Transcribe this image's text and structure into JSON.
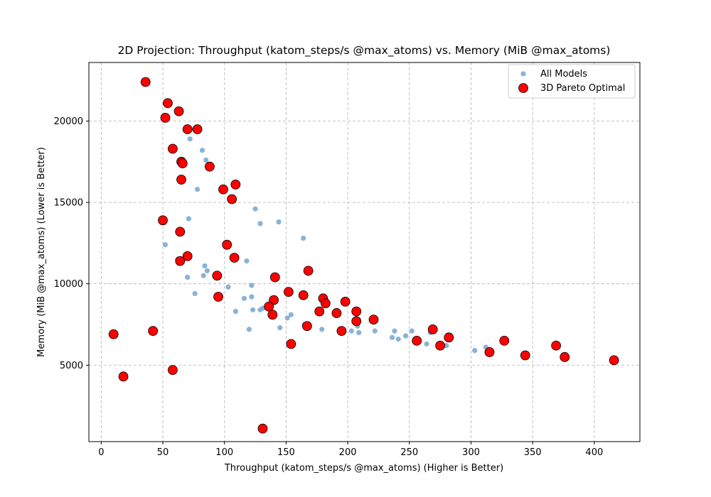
{
  "chart_data": {
    "type": "scatter",
    "title": "2D Projection: Throughput (katom_steps/s @max_atoms) vs. Memory (MiB @max_atoms)",
    "xlabel": "Throughput (katom_steps/s @max_atoms) (Higher is Better)",
    "ylabel": "Memory (MiB @max_atoms) (Lower is Better)",
    "xlim": [
      -10,
      437
    ],
    "ylim": [
      300,
      23600
    ],
    "xticks": [
      0,
      50,
      100,
      150,
      200,
      250,
      300,
      350,
      400
    ],
    "yticks": [
      5000,
      10000,
      15000,
      20000
    ],
    "grid": true,
    "legend_position": "top-right",
    "series": [
      {
        "name": "All Models",
        "color": "#89b3d6",
        "marker": "small-circle",
        "points": [
          [
            36,
            22400
          ],
          [
            54,
            21100
          ],
          [
            52,
            20200
          ],
          [
            63,
            20600
          ],
          [
            70,
            19500
          ],
          [
            72,
            18900
          ],
          [
            78,
            19500
          ],
          [
            82,
            18200
          ],
          [
            85,
            17600
          ],
          [
            58,
            18300
          ],
          [
            65,
            17500
          ],
          [
            66,
            17400
          ],
          [
            88,
            17200
          ],
          [
            65,
            16400
          ],
          [
            78,
            15800
          ],
          [
            99,
            15800
          ],
          [
            109,
            16100
          ],
          [
            106,
            15200
          ],
          [
            125,
            14600
          ],
          [
            129,
            13700
          ],
          [
            144,
            13800
          ],
          [
            164,
            12800
          ],
          [
            71,
            14000
          ],
          [
            50,
            13900
          ],
          [
            64,
            13200
          ],
          [
            52,
            12400
          ],
          [
            102,
            12400
          ],
          [
            62,
            11500
          ],
          [
            70,
            11700
          ],
          [
            64,
            11400
          ],
          [
            108,
            11600
          ],
          [
            118,
            11400
          ],
          [
            84,
            11100
          ],
          [
            86,
            10800
          ],
          [
            83,
            10500
          ],
          [
            70,
            10400
          ],
          [
            94,
            10500
          ],
          [
            141,
            10400
          ],
          [
            168,
            10800
          ],
          [
            76,
            9400
          ],
          [
            95,
            9200
          ],
          [
            103,
            9800
          ],
          [
            122,
            9900
          ],
          [
            116,
            9100
          ],
          [
            122,
            9200
          ],
          [
            109,
            8300
          ],
          [
            123,
            8400
          ],
          [
            129,
            8400
          ],
          [
            131,
            8500
          ],
          [
            136,
            8600
          ],
          [
            139,
            8100
          ],
          [
            140,
            9000
          ],
          [
            152,
            9500
          ],
          [
            151,
            7900
          ],
          [
            154,
            8100
          ],
          [
            165,
            7500
          ],
          [
            164,
            9300
          ],
          [
            177,
            8300
          ],
          [
            180,
            9100
          ],
          [
            182,
            8800
          ],
          [
            191,
            8200
          ],
          [
            198,
            8900
          ],
          [
            207,
            8300
          ],
          [
            207,
            7700
          ],
          [
            208,
            7400
          ],
          [
            221,
            7800
          ],
          [
            120,
            7200
          ],
          [
            145,
            7300
          ],
          [
            167,
            7400
          ],
          [
            179,
            7200
          ],
          [
            195,
            7100
          ],
          [
            203,
            7100
          ],
          [
            209,
            7000
          ],
          [
            222,
            7100
          ],
          [
            236,
            6700
          ],
          [
            238,
            7100
          ],
          [
            241,
            6600
          ],
          [
            247,
            6800
          ],
          [
            252,
            7100
          ],
          [
            256,
            6500
          ],
          [
            264,
            6300
          ],
          [
            267,
            7000
          ],
          [
            269,
            7200
          ],
          [
            275,
            6200
          ],
          [
            280,
            6200
          ],
          [
            282,
            6700
          ],
          [
            303,
            5900
          ],
          [
            312,
            6100
          ],
          [
            315,
            5800
          ],
          [
            327,
            6500
          ],
          [
            344,
            5600
          ],
          [
            369,
            6200
          ],
          [
            376,
            5500
          ],
          [
            416,
            5300
          ],
          [
            154,
            6300
          ],
          [
            131,
            1100
          ],
          [
            42,
            7100
          ],
          [
            10,
            6900
          ],
          [
            18,
            4300
          ],
          [
            58,
            4700
          ]
        ]
      },
      {
        "name": "3D Pareto Optimal",
        "color": "#ff0000",
        "edge_color": "#000000",
        "marker": "large-circle",
        "points": [
          [
            36,
            22400
          ],
          [
            54,
            21100
          ],
          [
            52,
            20200
          ],
          [
            63,
            20600
          ],
          [
            70,
            19500
          ],
          [
            78,
            19500
          ],
          [
            58,
            18300
          ],
          [
            65,
            17500
          ],
          [
            66,
            17400
          ],
          [
            88,
            17200
          ],
          [
            65,
            16400
          ],
          [
            99,
            15800
          ],
          [
            109,
            16100
          ],
          [
            106,
            15200
          ],
          [
            50,
            13900
          ],
          [
            64,
            13200
          ],
          [
            102,
            12400
          ],
          [
            70,
            11700
          ],
          [
            64,
            11400
          ],
          [
            108,
            11600
          ],
          [
            94,
            10500
          ],
          [
            141,
            10400
          ],
          [
            168,
            10800
          ],
          [
            95,
            9200
          ],
          [
            152,
            9500
          ],
          [
            164,
            9300
          ],
          [
            140,
            9000
          ],
          [
            136,
            8600
          ],
          [
            139,
            8100
          ],
          [
            177,
            8300
          ],
          [
            180,
            9100
          ],
          [
            182,
            8800
          ],
          [
            191,
            8200
          ],
          [
            198,
            8900
          ],
          [
            207,
            8300
          ],
          [
            207,
            7700
          ],
          [
            221,
            7800
          ],
          [
            167,
            7400
          ],
          [
            195,
            7100
          ],
          [
            256,
            6500
          ],
          [
            269,
            7200
          ],
          [
            275,
            6200
          ],
          [
            282,
            6700
          ],
          [
            315,
            5800
          ],
          [
            327,
            6500
          ],
          [
            344,
            5600
          ],
          [
            369,
            6200
          ],
          [
            376,
            5500
          ],
          [
            416,
            5300
          ],
          [
            154,
            6300
          ],
          [
            131,
            1100
          ],
          [
            42,
            7100
          ],
          [
            10,
            6900
          ],
          [
            18,
            4300
          ],
          [
            58,
            4700
          ]
        ]
      }
    ]
  }
}
